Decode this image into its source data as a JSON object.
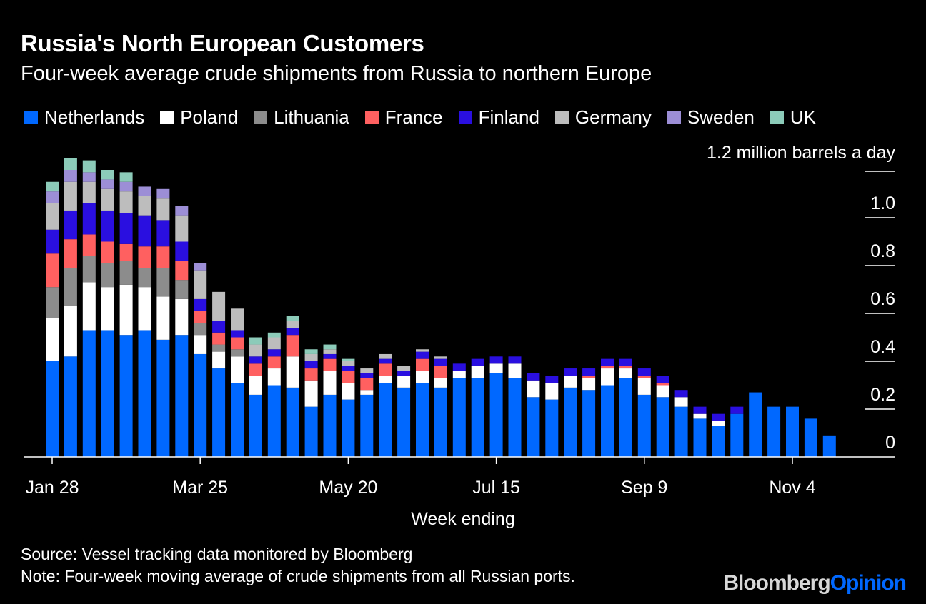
{
  "title": "Russia's North European Customers",
  "subtitle": "Four-week average crude shipments from Russia to northern Europe",
  "source": "Source: Vessel tracking data monitored by Bloomberg",
  "note": "Note: Four-week moving average of crude shipments from all Russian ports.",
  "brand": {
    "part1": "Bloomberg",
    "part2": "Opinion"
  },
  "colors": {
    "Netherlands": "#0068ff",
    "Poland": "#ffffff",
    "Lithuania": "#8c8c8c",
    "France": "#ff6060",
    "Finland": "#2a0fe0",
    "Germany": "#bdbdbd",
    "Sweden": "#9c8ed6",
    "UK": "#8ccbb9"
  },
  "legend": [
    "Netherlands",
    "Poland",
    "Lithuania",
    "France",
    "Finland",
    "Germany",
    "Sweden",
    "UK"
  ],
  "chart_data": {
    "type": "bar",
    "stacked": true,
    "xlabel": "Week ending",
    "y_unit_label": "1.2 million barrels a day",
    "ylim": [
      0,
      1.2
    ],
    "y_ticks": [
      "0",
      "0.2",
      "0.4",
      "0.6",
      "0.8",
      "1.0"
    ],
    "x_tick_labels": [
      {
        "index": 0,
        "label": "Jan 28"
      },
      {
        "index": 8,
        "label": "Mar 25"
      },
      {
        "index": 16,
        "label": "May 20"
      },
      {
        "index": 24,
        "label": "Jul 15"
      },
      {
        "index": 32,
        "label": "Sep 9"
      },
      {
        "index": 40,
        "label": "Nov 4"
      }
    ],
    "series": [
      {
        "name": "Netherlands",
        "values": [
          0.4,
          0.42,
          0.53,
          0.53,
          0.51,
          0.53,
          0.49,
          0.51,
          0.43,
          0.37,
          0.31,
          0.26,
          0.3,
          0.29,
          0.21,
          0.26,
          0.24,
          0.26,
          0.31,
          0.29,
          0.31,
          0.29,
          0.33,
          0.33,
          0.35,
          0.33,
          0.25,
          0.24,
          0.29,
          0.28,
          0.3,
          0.33,
          0.26,
          0.25,
          0.21,
          0.16,
          0.13,
          0.18,
          0.27,
          0.21,
          0.21,
          0.16,
          0.09
        ]
      },
      {
        "name": "Poland",
        "values": [
          0.18,
          0.21,
          0.2,
          0.18,
          0.21,
          0.18,
          0.18,
          0.15,
          0.08,
          0.07,
          0.11,
          0.08,
          0.07,
          0.13,
          0.11,
          0.1,
          0.07,
          0.02,
          0.03,
          0.05,
          0.05,
          0.04,
          0.03,
          0.05,
          0.04,
          0.06,
          0.07,
          0.07,
          0.05,
          0.05,
          0.07,
          0.04,
          0.07,
          0.05,
          0.04,
          0.02,
          0.02,
          0,
          0,
          0,
          0,
          0,
          0
        ]
      },
      {
        "name": "Lithuania",
        "values": [
          0.13,
          0.16,
          0.11,
          0.1,
          0.1,
          0.08,
          0.12,
          0.08,
          0.05,
          0.03,
          0.03,
          0,
          0,
          0,
          0,
          0,
          0,
          0,
          0,
          0,
          0,
          0,
          0,
          0,
          0,
          0,
          0,
          0,
          0,
          0,
          0,
          0,
          0,
          0,
          0,
          0,
          0,
          0,
          0,
          0,
          0,
          0,
          0
        ]
      },
      {
        "name": "France",
        "values": [
          0.14,
          0.12,
          0.09,
          0.09,
          0.07,
          0.09,
          0.09,
          0.08,
          0.05,
          0.05,
          0.05,
          0.05,
          0.05,
          0.09,
          0.05,
          0.05,
          0.05,
          0.05,
          0.05,
          0,
          0.05,
          0.05,
          0,
          0,
          0,
          0,
          0,
          0,
          0,
          0.01,
          0.01,
          0.01,
          0.01,
          0.01,
          0,
          0,
          0,
          0,
          0,
          0,
          0,
          0,
          0
        ]
      },
      {
        "name": "Finland",
        "values": [
          0.1,
          0.12,
          0.13,
          0.13,
          0.13,
          0.13,
          0.11,
          0.08,
          0.05,
          0.05,
          0.03,
          0.03,
          0.03,
          0.03,
          0.03,
          0.02,
          0.02,
          0.02,
          0.02,
          0.02,
          0.03,
          0.03,
          0.03,
          0.03,
          0.03,
          0.03,
          0.03,
          0.03,
          0.03,
          0.03,
          0.03,
          0.03,
          0.03,
          0.03,
          0.03,
          0.03,
          0.03,
          0.03,
          0,
          0,
          0,
          0,
          0
        ]
      },
      {
        "name": "Germany",
        "values": [
          0.11,
          0.12,
          0.09,
          0.09,
          0.09,
          0.08,
          0.09,
          0.11,
          0.12,
          0.12,
          0.09,
          0.05,
          0.05,
          0.03,
          0.03,
          0.02,
          0.02,
          0.02,
          0.02,
          0.02,
          0.01,
          0.01,
          0,
          0,
          0,
          0,
          0,
          0,
          0,
          0,
          0,
          0,
          0,
          0,
          0,
          0,
          0,
          0,
          0,
          0,
          0,
          0,
          0
        ]
      },
      {
        "name": "Sweden",
        "values": [
          0.05,
          0.05,
          0.04,
          0.04,
          0.04,
          0.04,
          0.04,
          0.04,
          0.03,
          0,
          0,
          0,
          0,
          0,
          0,
          0,
          0,
          0,
          0,
          0,
          0,
          0,
          0,
          0,
          0,
          0,
          0,
          0,
          0,
          0,
          0,
          0,
          0,
          0,
          0,
          0,
          0,
          0,
          0,
          0,
          0,
          0,
          0
        ]
      },
      {
        "name": "UK",
        "values": [
          0.04,
          0.05,
          0.05,
          0.04,
          0.04,
          0,
          0,
          0,
          0,
          0,
          0,
          0.03,
          0.02,
          0.02,
          0.02,
          0.02,
          0.01,
          0,
          0,
          0,
          0,
          0,
          0,
          0,
          0,
          0,
          0,
          0,
          0,
          0,
          0,
          0,
          0,
          0,
          0,
          0,
          0,
          0,
          0,
          0,
          0,
          0,
          0
        ]
      }
    ]
  }
}
